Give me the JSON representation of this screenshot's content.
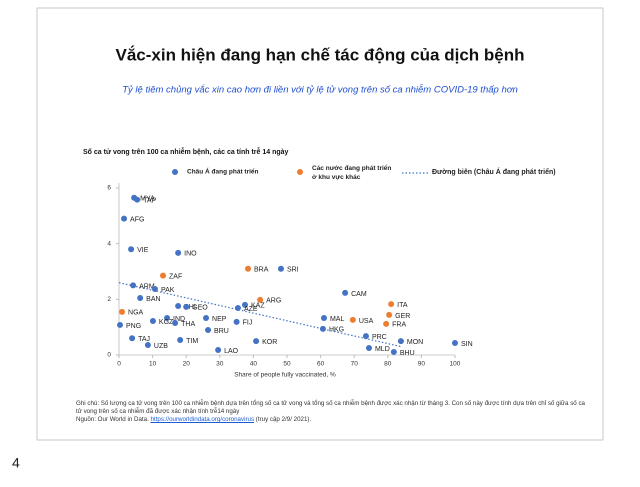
{
  "page_number": "4",
  "chart_data": {
    "type": "scatter",
    "title": "Vắc-xin hiện đang hạn chế tác động của dịch bệnh",
    "subtitle": "Tỷ lệ tiêm chủng vắc xin cao hơn đi liền với tỷ lệ tử vong trên số ca nhiễm COVID-19 thấp hơn",
    "y_label": "Số ca tử vong trên 100 ca nhiễm bệnh, các ca tính trễ 14 ngày",
    "x_label": "Share of people fully vaccinated, %",
    "xlim": [
      0,
      100
    ],
    "xticks": [
      0,
      10,
      20,
      30,
      40,
      50,
      60,
      70,
      80,
      90,
      100
    ],
    "ylim": [
      0,
      6
    ],
    "yticks": [
      0,
      2,
      4,
      6
    ],
    "series": [
      {
        "name": "Châu Á đang phát triển",
        "color": "#4472c4",
        "labels": [
          "MYA",
          "TAP",
          "AFG",
          "VIE",
          "INO",
          "SRI",
          "ARM",
          "PAK",
          "CAM",
          "BAN",
          "KAZ",
          "PHI",
          "GEO",
          "AZE",
          "NEP",
          "MAL",
          "IND",
          "FIJ",
          "PNG",
          "KGZ",
          "THA",
          "BRU",
          "HKG",
          "PRC",
          "TIM",
          "KOR",
          "MON",
          "SIN",
          "TAJ",
          "UZB",
          "LAO",
          "MLD",
          "BHU"
        ],
        "x": [
          4.5,
          5.4,
          1.5,
          3.6,
          17.6,
          48.2,
          4.2,
          10.7,
          67.3,
          6.3,
          37.5,
          17.6,
          20,
          35.4,
          25.9,
          61,
          14.3,
          35,
          0.3,
          10.1,
          16.7,
          26.5,
          60.7,
          73.5,
          18.2,
          40.8,
          83.9,
          100,
          3.9,
          8.6,
          29.5,
          74.4,
          81.8
        ],
        "values": [
          5.65,
          5.58,
          4.9,
          3.8,
          3.67,
          3.1,
          2.5,
          2.37,
          2.23,
          2.05,
          1.8,
          1.76,
          1.73,
          1.69,
          1.33,
          1.33,
          1.33,
          1.19,
          1.08,
          1.22,
          1.15,
          0.9,
          0.94,
          0.68,
          0.54,
          0.5,
          0.5,
          0.43,
          0.6,
          0.36,
          0.18,
          0.25,
          0.11
        ]
      },
      {
        "name": "Các nước đang phát triển ở khu vực khác",
        "color": "#ed7d31",
        "labels": [
          "ZAF",
          "BRA",
          "ARG",
          "ITA",
          "NGA",
          "USA",
          "GER",
          "FRA"
        ],
        "x": [
          13.1,
          38.4,
          42,
          81,
          0.9,
          69.6,
          80.4,
          79.5
        ],
        "values": [
          2.85,
          3.1,
          1.98,
          1.83,
          1.55,
          1.26,
          1.44,
          1.12
        ]
      }
    ],
    "trend": {
      "name": "Đường biên (Châu Á đang phát triển)",
      "color": "#4472c4",
      "x": [
        0,
        84
      ],
      "values": [
        2.6,
        0.3
      ]
    },
    "note": "Ghi chú: Số lượng ca tử vong trên 100 ca nhiễm bệnh dựa trên tổng số ca tử vong và tổng số ca nhiễm bệnh được xác nhận từ tháng 3. Con số này được tính dựa trên chỉ số giữa số ca tử vong trên số ca nhiễm đã được xác nhận tính trễ14 ngày",
    "source_prefix": "Nguồn: Our World in Data.",
    "source_link": "https://ourworldindata.org/coronavirus",
    "source_suffix": "(truy cập 2/9/ 2021)."
  }
}
